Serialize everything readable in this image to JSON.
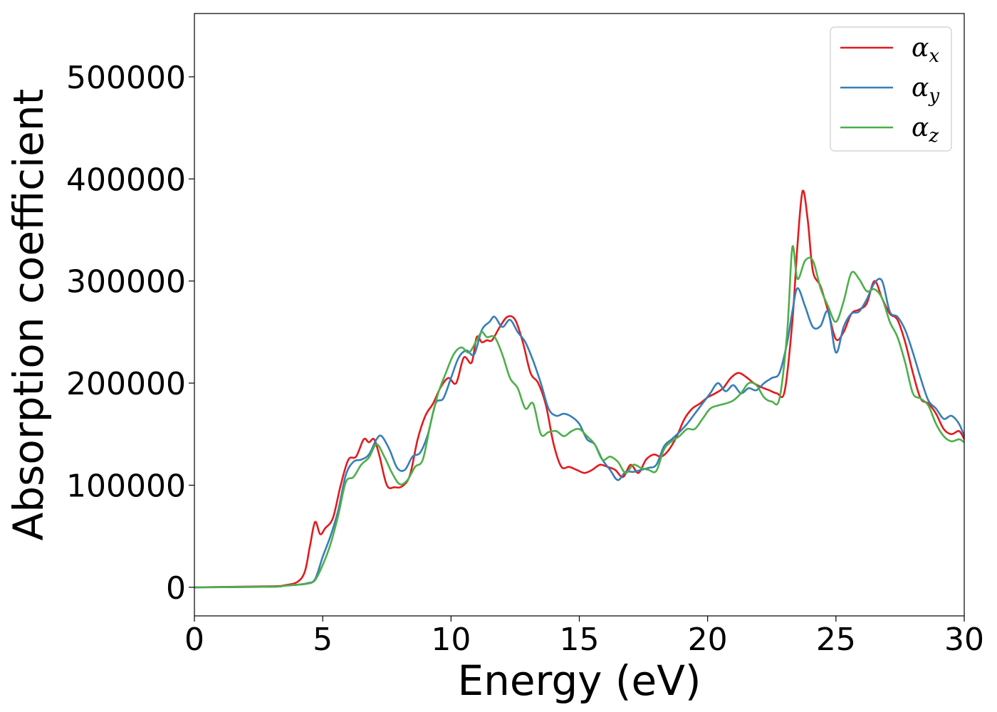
{
  "chart_data": {
    "type": "line",
    "title": "",
    "xlabel": "Energy (eV)",
    "ylabel": "Absorption coefficient",
    "xlim": [
      0,
      30
    ],
    "ylim": [
      -28000,
      562000
    ],
    "xticks": [
      0,
      5,
      10,
      15,
      20,
      25,
      30
    ],
    "yticks": [
      0,
      100000,
      200000,
      300000,
      400000,
      500000
    ],
    "xtick_labels": [
      "0",
      "5",
      "10",
      "15",
      "20",
      "25",
      "30"
    ],
    "ytick_labels": [
      "0",
      "100000",
      "200000",
      "300000",
      "400000",
      "500000"
    ],
    "grid": false,
    "legend_position": "top-right",
    "series": [
      {
        "name": "α_x",
        "label_main": "α",
        "label_sub": "x",
        "color": "#e41a1c",
        "x": [
          0,
          3,
          3.5,
          4,
          4.3,
          4.5,
          4.7,
          4.9,
          5.1,
          5.4,
          5.7,
          6,
          6.3,
          6.6,
          6.8,
          7,
          7.2,
          7.5,
          7.8,
          8.1,
          8.4,
          8.7,
          9,
          9.3,
          9.6,
          9.9,
          10.2,
          10.5,
          10.8,
          11,
          11.2,
          11.4,
          11.6,
          11.9,
          12.2,
          12.5,
          12.8,
          13.1,
          13.4,
          13.7,
          14,
          14.3,
          14.6,
          14.9,
          15.2,
          15.5,
          15.8,
          16.1,
          16.4,
          16.7,
          17,
          17.3,
          17.6,
          17.9,
          18.2,
          18.5,
          18.8,
          19.1,
          19.4,
          19.7,
          20,
          20.3,
          20.6,
          20.9,
          21.2,
          21.5,
          21.8,
          22.1,
          22.4,
          22.7,
          23,
          23.3,
          23.5,
          23.7,
          23.9,
          24.1,
          24.4,
          24.7,
          25,
          25.3,
          25.6,
          25.9,
          26.2,
          26.5,
          26.8,
          27.1,
          27.4,
          27.7,
          28,
          28.3,
          28.6,
          28.9,
          29.2,
          29.5,
          29.8,
          30
        ],
        "y": [
          0,
          1000,
          2000,
          5000,
          15000,
          40000,
          64000,
          52000,
          58000,
          68000,
          100000,
          125000,
          128000,
          145000,
          142000,
          145000,
          130000,
          100000,
          98000,
          99000,
          110000,
          145000,
          168000,
          180000,
          196000,
          205000,
          200000,
          225000,
          220000,
          245000,
          240000,
          242000,
          242000,
          255000,
          265000,
          262000,
          240000,
          210000,
          200000,
          178000,
          140000,
          118000,
          118000,
          115000,
          112000,
          115000,
          120000,
          118000,
          115000,
          108000,
          120000,
          112000,
          125000,
          130000,
          128000,
          135000,
          148000,
          165000,
          175000,
          180000,
          186000,
          190000,
          195000,
          205000,
          210000,
          206000,
          200000,
          196000,
          193000,
          190000,
          192000,
          260000,
          335000,
          388000,
          360000,
          310000,
          295000,
          270000,
          243000,
          250000,
          268000,
          272000,
          278000,
          300000,
          283000,
          268000,
          262000,
          240000,
          210000,
          185000,
          180000,
          170000,
          155000,
          150000,
          153000,
          145000
        ],
        "drawn_y": "computed"
      },
      {
        "name": "α_y",
        "label_main": "α",
        "label_sub": "y",
        "color": "#377eb8",
        "x": [
          0,
          3,
          3.5,
          4,
          4.4,
          4.7,
          5,
          5.3,
          5.6,
          5.9,
          6.2,
          6.5,
          6.8,
          7.1,
          7.3,
          7.6,
          7.9,
          8.2,
          8.5,
          8.8,
          9.1,
          9.4,
          9.7,
          10,
          10.3,
          10.6,
          10.9,
          11.2,
          11.5,
          11.7,
          12,
          12.3,
          12.6,
          12.9,
          13.2,
          13.5,
          13.8,
          14.1,
          14.4,
          14.7,
          15,
          15.3,
          15.6,
          15.9,
          16.2,
          16.5,
          16.8,
          17.1,
          17.4,
          17.7,
          18,
          18.3,
          18.6,
          18.9,
          19.2,
          19.5,
          19.8,
          20.1,
          20.4,
          20.7,
          21,
          21.3,
          21.6,
          21.9,
          22.2,
          22.5,
          22.8,
          23.1,
          23.3,
          23.5,
          23.8,
          24.1,
          24.4,
          24.7,
          25,
          25.3,
          25.6,
          25.9,
          26.2,
          26.5,
          26.8,
          27.1,
          27.4,
          27.7,
          28,
          28.3,
          28.6,
          28.9,
          29.2,
          29.5,
          29.8,
          30
        ],
        "y": [
          0,
          500,
          1500,
          2500,
          4000,
          8000,
          30000,
          50000,
          75000,
          110000,
          123000,
          125000,
          130000,
          145000,
          148000,
          135000,
          117000,
          115000,
          128000,
          132000,
          150000,
          180000,
          185000,
          205000,
          225000,
          232000,
          228000,
          252000,
          260000,
          265000,
          255000,
          262000,
          250000,
          240000,
          222000,
          200000,
          175000,
          168000,
          170000,
          167000,
          160000,
          145000,
          140000,
          125000,
          115000,
          105000,
          113000,
          113000,
          115000,
          117000,
          120000,
          138000,
          145000,
          152000,
          160000,
          170000,
          180000,
          190000,
          200000,
          192000,
          198000,
          190000,
          195000,
          193000,
          200000,
          205000,
          210000,
          240000,
          270000,
          293000,
          275000,
          255000,
          256000,
          270000,
          230000,
          255000,
          268000,
          270000,
          282000,
          298000,
          300000,
          270000,
          265000,
          252000,
          230000,
          205000,
          183000,
          175000,
          165000,
          168000,
          160000,
          148000
        ],
        "drawn_y": "computed"
      },
      {
        "name": "α_z",
        "label_main": "α",
        "label_sub": "z",
        "color": "#4daf4a",
        "x": [
          0,
          3,
          3.5,
          4,
          4.4,
          4.7,
          5,
          5.3,
          5.6,
          5.9,
          6.2,
          6.5,
          6.8,
          7.1,
          7.4,
          7.7,
          8,
          8.3,
          8.6,
          8.9,
          9.2,
          9.5,
          9.8,
          10.1,
          10.4,
          10.7,
          11,
          11.2,
          11.4,
          11.7,
          12,
          12.3,
          12.6,
          12.9,
          13.2,
          13.5,
          13.8,
          14.1,
          14.4,
          14.7,
          15,
          15.3,
          15.6,
          15.9,
          16.2,
          16.5,
          16.8,
          17.1,
          17.4,
          17.7,
          18,
          18.3,
          18.6,
          18.9,
          19.2,
          19.5,
          19.8,
          20.1,
          20.4,
          20.7,
          21,
          21.3,
          21.6,
          21.9,
          22.2,
          22.5,
          22.8,
          23.1,
          23.3,
          23.5,
          23.8,
          24.1,
          24.4,
          24.7,
          25,
          25.3,
          25.6,
          25.9,
          26.2,
          26.5,
          26.8,
          27.1,
          27.4,
          27.7,
          28,
          28.3,
          28.6,
          28.9,
          29.2,
          29.5,
          29.8,
          30
        ],
        "y": [
          0,
          500,
          1500,
          2500,
          3500,
          7000,
          22000,
          42000,
          70000,
          103000,
          108000,
          120000,
          127000,
          140000,
          128000,
          112000,
          101000,
          105000,
          118000,
          125000,
          160000,
          190000,
          210000,
          228000,
          235000,
          230000,
          242000,
          250000,
          245000,
          245000,
          228000,
          205000,
          195000,
          175000,
          180000,
          150000,
          152000,
          153000,
          148000,
          153000,
          155000,
          148000,
          140000,
          125000,
          128000,
          123000,
          112000,
          120000,
          117000,
          115000,
          114000,
          135000,
          143000,
          148000,
          155000,
          155000,
          165000,
          175000,
          178000,
          180000,
          183000,
          190000,
          200000,
          198000,
          186000,
          182000,
          185000,
          250000,
          333000,
          302000,
          320000,
          320000,
          293000,
          275000,
          260000,
          280000,
          308000,
          302000,
          290000,
          292000,
          283000,
          260000,
          245000,
          220000,
          190000,
          185000,
          178000,
          160000,
          148000,
          143000,
          145000,
          142000
        ],
        "drawn_y": "computed"
      }
    ]
  }
}
